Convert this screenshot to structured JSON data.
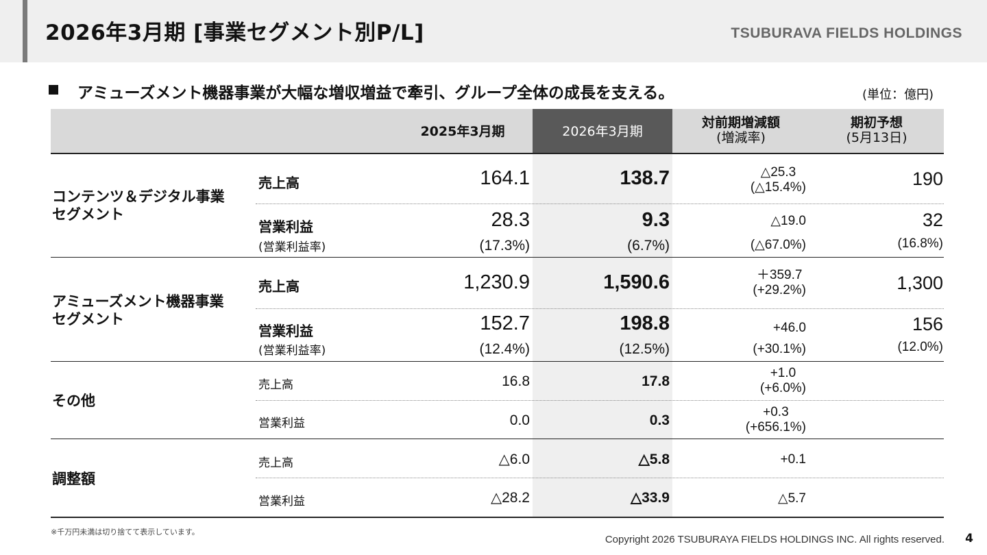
{
  "header": {
    "title": "2026年3月期 [事業セグメント別P/L]",
    "brand": "TSUBURAVA FIELDS HOLDINGS"
  },
  "lead": "アミューズメント機器事業が大幅な増収増益で牽引、グループ全体の成長を支える。",
  "unit": "(単位：億円)",
  "table": {
    "columns": {
      "prev": "2025年3月期",
      "current": "2026年3月期",
      "diff": "対前期増減額",
      "diff_sub": "(増減率)",
      "forecast": "期初予想",
      "forecast_sub": "(5月13日)"
    },
    "segments": {
      "contents": {
        "name_1": "コンテンツ＆デジタル事業",
        "name_2": "セグメント",
        "sales_label": "売上高",
        "sales": {
          "prev": "164.1",
          "current": "138.7",
          "diff": "△25.3",
          "rate": "(△15.4%)",
          "forecast": "190"
        },
        "op_label": "営業利益",
        "op": {
          "prev": "28.3",
          "current": "9.3",
          "diff": "△19.0",
          "forecast": "32"
        },
        "margin_label": "(営業利益率)",
        "margin": {
          "prev": "(17.3%)",
          "current": "(6.7%)",
          "diff": "(△67.0%)",
          "forecast": "(16.8%)"
        }
      },
      "amusement": {
        "name_1": "アミューズメント機器事業",
        "name_2": "セグメント",
        "sales_label": "売上高",
        "sales": {
          "prev": "1,230.9",
          "current": "1,590.6",
          "diff": "＋359.7",
          "rate": "(+29.2%)",
          "forecast": "1,300"
        },
        "op_label": "営業利益",
        "op": {
          "prev": "152.7",
          "current": "198.8",
          "diff": "+46.0",
          "forecast": "156"
        },
        "margin_label": "(営業利益率)",
        "margin": {
          "prev": "(12.4%)",
          "current": "(12.5%)",
          "diff": "(+30.1%)",
          "forecast": "(12.0%)"
        }
      },
      "other": {
        "name": "その他",
        "sales_label": "売上高",
        "sales": {
          "prev": "16.8",
          "current": "17.8",
          "diff": "+1.0",
          "rate": "(+6.0%)"
        },
        "op_label": "営業利益",
        "op": {
          "prev": "0.0",
          "current": "0.3",
          "diff": "+0.3",
          "rate": "(+656.1%)"
        }
      },
      "adjust": {
        "name": "調整額",
        "sales_label": "売上高",
        "sales": {
          "prev": "△6.0",
          "current": "△5.8",
          "diff": "+0.1"
        },
        "op_label": "営業利益",
        "op": {
          "prev": "△28.2",
          "current": "△33.9",
          "diff": "△5.7"
        }
      }
    }
  },
  "footer": {
    "note": "※千万円未満は切り捨てて表示しています。",
    "copyright": "Copyright 2026 TSUBURAYA FIELDS HOLDINGS INC. All rights reserved.",
    "page": "4"
  }
}
